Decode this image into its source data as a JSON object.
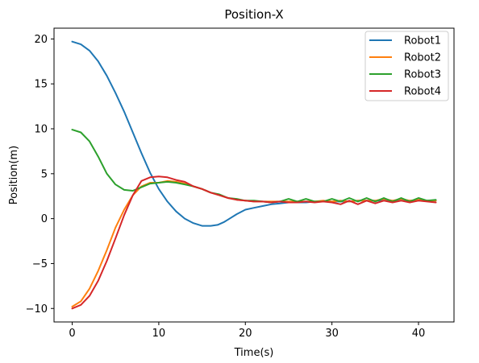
{
  "chart_data": {
    "type": "line",
    "title": "Position-X",
    "xlabel": "Time(s)",
    "ylabel": "Position(m)",
    "xlim": [
      -2.1,
      44.1
    ],
    "ylim": [
      -11.5,
      21.2
    ],
    "xticks": [
      0,
      10,
      20,
      30,
      40
    ],
    "yticks": [
      -10,
      -5,
      0,
      5,
      10,
      15,
      20
    ],
    "ytick_labels": [
      "−10",
      "−5",
      "0",
      "5",
      "10",
      "15",
      "20"
    ],
    "grid": false,
    "legend_position": "top-right",
    "series": [
      {
        "name": "Robot1",
        "color": "#1f77b4",
        "x": [
          0,
          1,
          2,
          3,
          4,
          5,
          6,
          7,
          8,
          9,
          10,
          11,
          12,
          13,
          14,
          15,
          16,
          16.8,
          17.5,
          18,
          19,
          20,
          21,
          22,
          23,
          24,
          25,
          26,
          27,
          28,
          29,
          30,
          31,
          32,
          33,
          34,
          35,
          36,
          37,
          38,
          39,
          40,
          41,
          42
        ],
        "y": [
          19.7,
          19.4,
          18.7,
          17.5,
          15.9,
          14.0,
          11.9,
          9.6,
          7.3,
          5.1,
          3.3,
          1.9,
          0.8,
          0.0,
          -0.5,
          -0.8,
          -0.8,
          -0.7,
          -0.4,
          -0.1,
          0.5,
          1.0,
          1.2,
          1.4,
          1.6,
          1.7,
          1.8,
          1.8,
          1.8,
          1.9,
          1.9,
          1.9,
          1.9,
          1.9,
          2.0,
          2.0,
          2.0,
          2.0,
          2.0,
          2.0,
          2.0,
          2.0,
          2.0,
          2.0
        ]
      },
      {
        "name": "Robot2",
        "color": "#ff7f0e",
        "x": [
          0,
          1,
          2,
          3,
          4,
          5,
          6,
          7,
          8,
          9,
          10,
          11,
          12,
          13,
          14,
          15,
          16,
          17,
          18,
          19,
          20,
          21,
          22,
          23,
          24,
          25,
          26,
          27,
          28,
          29,
          30,
          31,
          32,
          33,
          34,
          35,
          36,
          37,
          38,
          39,
          40,
          41,
          42
        ],
        "y": [
          -9.8,
          -9.2,
          -7.8,
          -5.8,
          -3.5,
          -1.0,
          1.0,
          2.6,
          3.6,
          4.0,
          4.0,
          4.2,
          4.1,
          3.9,
          3.6,
          3.3,
          2.9,
          2.6,
          2.3,
          2.1,
          2.0,
          1.9,
          1.9,
          1.9,
          1.9,
          1.9,
          1.9,
          1.9,
          1.9,
          2.0,
          1.9,
          2.0,
          1.9,
          2.0,
          2.0,
          2.0,
          2.2,
          2.0,
          2.2,
          2.0,
          2.1,
          2.0,
          2.0
        ]
      },
      {
        "name": "Robot3",
        "color": "#2ca02c",
        "x": [
          0,
          1,
          2,
          3,
          4,
          5,
          6,
          7,
          8,
          9,
          10,
          11,
          12,
          13,
          14,
          15,
          16,
          17,
          18,
          19,
          20,
          21,
          22,
          23,
          24,
          25,
          26,
          27,
          28,
          29,
          30,
          31,
          32,
          33,
          34,
          35,
          36,
          37,
          38,
          39,
          40,
          41,
          42
        ],
        "y": [
          9.9,
          9.6,
          8.6,
          6.9,
          5.0,
          3.8,
          3.2,
          3.1,
          3.5,
          3.9,
          4.0,
          4.1,
          4.0,
          3.8,
          3.6,
          3.3,
          2.9,
          2.7,
          2.3,
          2.2,
          2.0,
          2.0,
          1.9,
          1.8,
          1.9,
          2.2,
          1.9,
          2.2,
          1.9,
          1.9,
          2.2,
          1.9,
          2.3,
          1.9,
          2.3,
          1.9,
          2.3,
          1.9,
          2.3,
          1.9,
          2.3,
          2.0,
          2.1
        ]
      },
      {
        "name": "Robot4",
        "color": "#d62728",
        "x": [
          0,
          1,
          2,
          3,
          4,
          5,
          6,
          7,
          8,
          9,
          10,
          11,
          12,
          13,
          14,
          15,
          16,
          17,
          18,
          19,
          20,
          21,
          22,
          23,
          24,
          25,
          26,
          27,
          28,
          29,
          30,
          31,
          32,
          33,
          34,
          35,
          36,
          37,
          38,
          39,
          40,
          41,
          42
        ],
        "y": [
          -10.0,
          -9.6,
          -8.6,
          -6.9,
          -4.7,
          -2.2,
          0.4,
          2.6,
          4.2,
          4.6,
          4.7,
          4.6,
          4.3,
          4.1,
          3.6,
          3.3,
          2.9,
          2.6,
          2.3,
          2.1,
          2.0,
          1.9,
          1.9,
          1.8,
          1.9,
          1.8,
          1.8,
          1.9,
          1.8,
          1.9,
          1.8,
          1.6,
          2.0,
          1.6,
          2.0,
          1.7,
          2.0,
          1.8,
          2.0,
          1.8,
          2.0,
          1.9,
          1.8
        ]
      }
    ]
  }
}
